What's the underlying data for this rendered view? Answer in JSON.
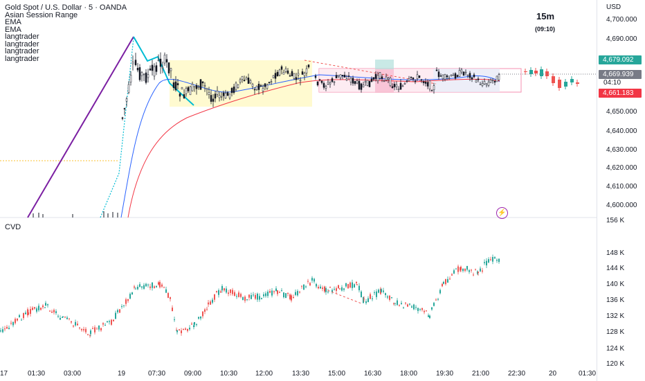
{
  "legend": {
    "title": "Gold Spot / U.S. Dollar · 5 · OANDA",
    "indicators": [
      "Asian Session Range",
      "EMA",
      "EMA",
      "langtrader",
      "langtrader",
      "langtrader",
      "langtrader"
    ]
  },
  "timeframe": {
    "label": "15m",
    "countdown": "(09:10)"
  },
  "cvd_label": "CVD",
  "currency": "USD",
  "price_axis_ticks": [
    "4,700.000",
    "4,690.000",
    "4,650.000",
    "4,640.000",
    "4,630.000",
    "4,620.000",
    "4,610.000",
    "4,600.000"
  ],
  "price_labels": {
    "high_level": "4,679.092",
    "current": "4,669.939",
    "countdown": "04:10",
    "low_level": "4,661.183"
  },
  "colors": {
    "up": "#26a69a",
    "down": "#ef5350",
    "high_badge": "#26a69a",
    "current_badge": "#787b86",
    "low_badge": "#f23645",
    "ema_fast": "#2962ff",
    "ema_slow": "#f23645",
    "zigzag": "#00bcd4",
    "session_box": "#fff9c4"
  },
  "cvd_axis_ticks": [
    "156 K",
    "148 K",
    "144 K",
    "140 K",
    "136 K",
    "132 K",
    "128 K",
    "124 K",
    "120 K"
  ],
  "time_axis": [
    "17",
    "01:30",
    "03:00",
    "19",
    "07:30",
    "09:00",
    "10:30",
    "12:00",
    "13:30",
    "15:00",
    "16:30",
    "18:00",
    "19:30",
    "21:00",
    "22:30",
    "20",
    "01:30"
  ],
  "flash_icon": "lightning-icon"
}
